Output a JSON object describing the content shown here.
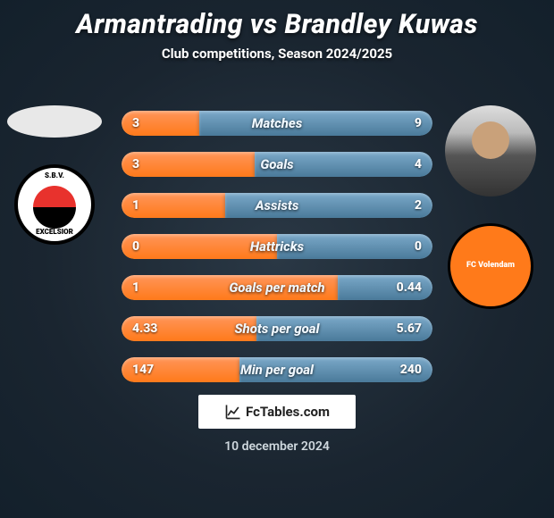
{
  "title": "Armantrading vs Brandley Kuwas",
  "subtitle": "Club competitions, Season 2024/2025",
  "date": "10 december 2024",
  "footer_label": "FcTables.com",
  "colors": {
    "left_bar": "#ff7a1a",
    "right_bar": "#4a7a9a",
    "background_center": "#2a3845",
    "background_edge": "#13202b"
  },
  "player_left": {
    "name": "Armantrading",
    "club_name": "S.B.V. Excelsior"
  },
  "player_right": {
    "name": "Brandley Kuwas",
    "club_name": "FC Volendam"
  },
  "rows": [
    {
      "label": "Matches",
      "left": "3",
      "right": "9",
      "left_pct": 25,
      "right_pct": 75
    },
    {
      "label": "Goals",
      "left": "3",
      "right": "4",
      "left_pct": 42.9,
      "right_pct": 57.1
    },
    {
      "label": "Assists",
      "left": "1",
      "right": "2",
      "left_pct": 33.3,
      "right_pct": 66.7
    },
    {
      "label": "Hattricks",
      "left": "0",
      "right": "0",
      "left_pct": 50,
      "right_pct": 50
    },
    {
      "label": "Goals per match",
      "left": "1",
      "right": "0.44",
      "left_pct": 69.4,
      "right_pct": 30.6
    },
    {
      "label": "Shots per goal",
      "left": "4.33",
      "right": "5.67",
      "left_pct": 43.3,
      "right_pct": 56.7
    },
    {
      "label": "Min per goal",
      "left": "147",
      "right": "240",
      "left_pct": 38,
      "right_pct": 62
    }
  ]
}
